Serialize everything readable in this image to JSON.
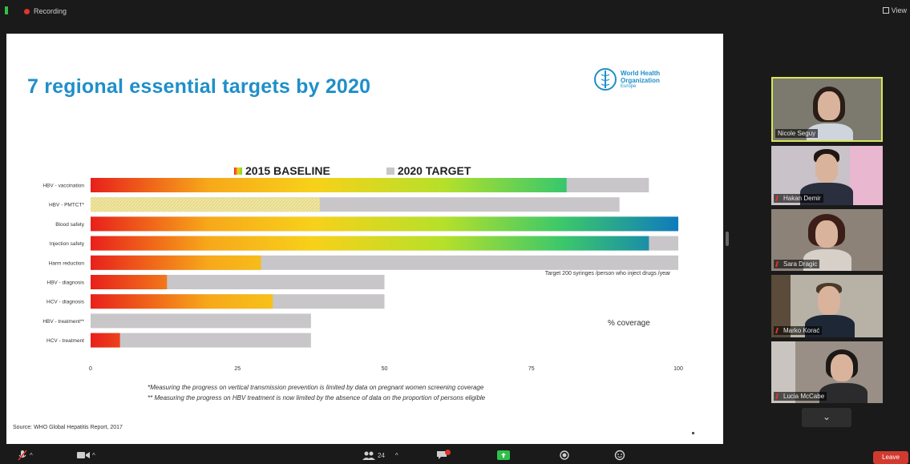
{
  "topbar": {
    "recording_label": "Recording",
    "view_label": "View"
  },
  "slide": {
    "title": "7 regional essential targets by 2020",
    "logo": {
      "line1": "World Health",
      "line2": "Organization",
      "line3": "Europe"
    },
    "annotation_target": "Target 200 syringes /person who inject drugs /year",
    "annotation_coverage": "% coverage",
    "footnote1": "*Measuring the progress on vertical transmission prevention is limited by data on pregnant women screening coverage",
    "footnote2": "** Measuring the progress on HBV treatment is now limited by the absence of data on the proportion of persons eligible",
    "source": "Source: WHO Global Hepatitis Report, 2017"
  },
  "chart_data": {
    "type": "bar",
    "orientation": "horizontal",
    "categories": [
      "HBV - vaccination",
      "HBV - PMTCT*",
      "Blood safety",
      "Injection safety",
      "Harm reduction",
      "HBV - diagnosis",
      "HCV - diagnosis",
      "HBV - treatment**",
      "HCV - treatment"
    ],
    "series": [
      {
        "name": "2015 BASELINE",
        "values": [
          81,
          39,
          100,
          95,
          29,
          13,
          31,
          0,
          5
        ]
      },
      {
        "name": "2020 TARGET",
        "values": [
          95,
          90,
          100,
          100,
          100,
          50,
          50,
          37.5,
          37.5
        ]
      }
    ],
    "xlim": [
      0,
      100
    ],
    "xticks": [
      0,
      25,
      50,
      75,
      100
    ],
    "legend_position": "top",
    "hatched_categories": [
      "HBV - PMTCT*"
    ],
    "colors": {
      "baseline_gradient": [
        "#e8201b",
        "#f7a81a",
        "#f7d11a",
        "#6fdc2a",
        "#0f7bbd"
      ],
      "target": "#c8c6c9"
    }
  },
  "participants": [
    {
      "name": "Nicole Seguy",
      "muted": false,
      "active": true
    },
    {
      "name": "Hakan Demir",
      "muted": true,
      "active": false
    },
    {
      "name": "Sara Dragic",
      "muted": true,
      "active": false
    },
    {
      "name": "Marko Korać",
      "muted": true,
      "active": false
    },
    {
      "name": "Lucia McCabe",
      "muted": true,
      "active": false
    }
  ],
  "bottombar": {
    "participants_count": "24",
    "leave_label": "Leave"
  },
  "icons": [
    "mic-off-icon",
    "video-icon",
    "participants-icon",
    "chat-icon",
    "share-screen-icon",
    "record-icon",
    "reactions-icon",
    "chevron-down-icon"
  ]
}
